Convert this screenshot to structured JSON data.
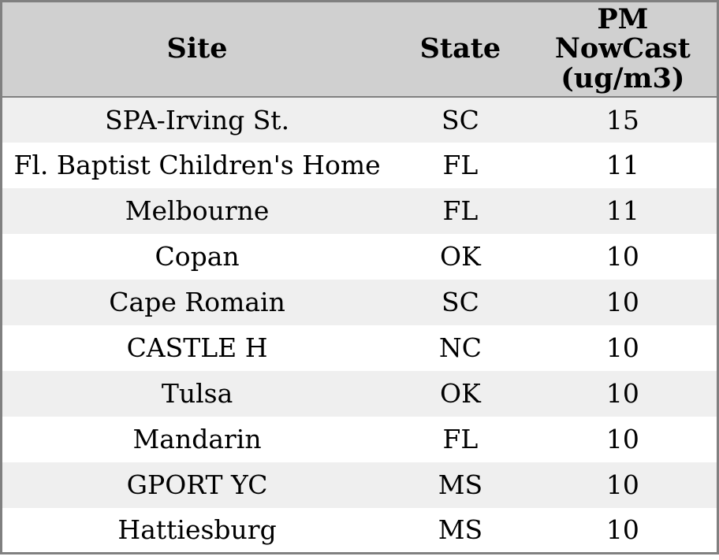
{
  "chart_data": {
    "type": "table",
    "title": "",
    "columns": [
      "Site",
      "State",
      "PM NowCast (ug/m3)"
    ],
    "rows": [
      [
        "SPA-Irving St.",
        "SC",
        15
      ],
      [
        "Fl. Baptist Children's Home",
        "FL",
        11
      ],
      [
        "Melbourne",
        "FL",
        11
      ],
      [
        "Copan",
        "OK",
        10
      ],
      [
        "Cape Romain",
        "SC",
        10
      ],
      [
        "CASTLE H",
        "NC",
        10
      ],
      [
        "Tulsa",
        "OK",
        10
      ],
      [
        "Mandarin",
        "FL",
        10
      ],
      [
        "GPORT YC",
        "MS",
        10
      ],
      [
        "Hattiesburg",
        "MS",
        10
      ]
    ],
    "layout": {
      "grid": "off",
      "row_striping": true,
      "header_position": "top"
    }
  },
  "table": {
    "headers": {
      "site": "Site",
      "state": "State",
      "pm": "PM\nNowCast\n(ug/m3)"
    },
    "rows": [
      {
        "site": "SPA-Irving St.",
        "state": "SC",
        "pm": "15"
      },
      {
        "site": "Fl. Baptist Children's Home",
        "state": "FL",
        "pm": "11"
      },
      {
        "site": "Melbourne",
        "state": "FL",
        "pm": "11"
      },
      {
        "site": "Copan",
        "state": "OK",
        "pm": "10"
      },
      {
        "site": "Cape Romain",
        "state": "SC",
        "pm": "10"
      },
      {
        "site": "CASTLE H",
        "state": "NC",
        "pm": "10"
      },
      {
        "site": "Tulsa",
        "state": "OK",
        "pm": "10"
      },
      {
        "site": "Mandarin",
        "state": "FL",
        "pm": "10"
      },
      {
        "site": "GPORT YC",
        "state": "MS",
        "pm": "10"
      },
      {
        "site": "Hattiesburg",
        "state": "MS",
        "pm": "10"
      }
    ]
  },
  "colors": {
    "header_bg": "#d0d0d0",
    "stripe_row_bg": "#efefef",
    "plain_row_bg": "#ffffff",
    "border": "#808080",
    "text": "#000000"
  }
}
